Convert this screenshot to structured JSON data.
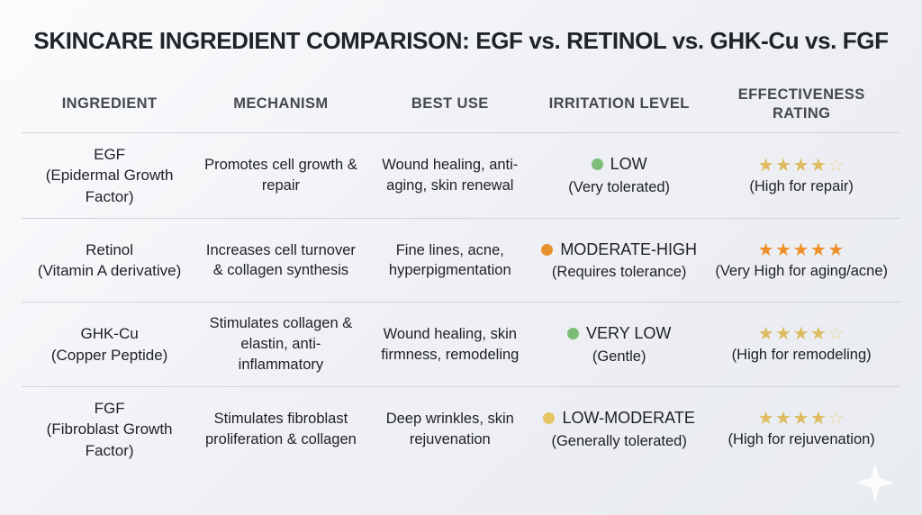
{
  "title": "SKINCARE INGREDIENT COMPARISON: EGF vs. RETINOL vs. GHK-Cu vs. FGF",
  "columns": {
    "ingredient": "INGREDIENT",
    "mechanism": "MECHANISM",
    "best_use": "BEST USE",
    "irritation": "IRRITATION LEVEL",
    "effectiveness": "EFFECTIVENESS RATING"
  },
  "colors": {
    "irritation_green": "#7cbd7a",
    "irritation_orange": "#e8922f",
    "irritation_yellow": "#e5c463",
    "star_gold": "#debb5e",
    "star_gold_empty": "#e9d89b",
    "star_orange": "#ee8f2a",
    "divider": "#d1d4d8"
  },
  "table": {
    "rows": [
      {
        "ingredient": "EGF",
        "ingredient_sub": "(Epidermal Growth Factor)",
        "mechanism": "Promotes cell growth & repair",
        "best_use": "Wound healing, anti-aging, skin renewal",
        "irritation": {
          "level": "LOW",
          "note": "(Very tolerated)",
          "dot_color": "#7cbd7a"
        },
        "rating": {
          "value": 4,
          "max": 5,
          "stars_filled": "★★★★",
          "stars_empty": "☆",
          "star_color": "#debb5e",
          "empty_star_color": "#e9d89b",
          "note": "(High for repair)"
        }
      },
      {
        "ingredient": "Retinol",
        "ingredient_sub": "(Vitamin A derivative)",
        "mechanism": "Increases cell turnover & collagen synthesis",
        "best_use": "Fine lines, acne, hyperpigmentation",
        "irritation": {
          "level": "MODERATE-HIGH",
          "note": "(Requires tolerance)",
          "dot_color": "#e8922f"
        },
        "rating": {
          "value": 5,
          "max": 5,
          "stars_filled": "★★★★★",
          "stars_empty": "",
          "star_color": "#ee8f2a",
          "empty_star_color": "#e9d89b",
          "note": "(Very High for aging/acne)"
        }
      },
      {
        "ingredient": "GHK-Cu",
        "ingredient_sub": "(Copper Peptide)",
        "mechanism": "Stimulates collagen & elastin, anti-inflammatory",
        "best_use": "Wound healing, skin firmness, remodeling",
        "irritation": {
          "level": "VERY LOW",
          "note": "(Gentle)",
          "dot_color": "#7cbd7a"
        },
        "rating": {
          "value": 4,
          "max": 5,
          "stars_filled": "★★★★",
          "stars_empty": "☆",
          "star_color": "#debb5e",
          "empty_star_color": "#e9d89b",
          "note": "(High for remodeling)"
        }
      },
      {
        "ingredient": "FGF",
        "ingredient_sub": "(Fibroblast Growth Factor)",
        "mechanism": "Stimulates fibroblast proliferation & collagen",
        "best_use": "Deep wrinkles, skin rejuvenation",
        "irritation": {
          "level": "LOW-MODERATE",
          "note": "(Generally tolerated)",
          "dot_color": "#e5c463"
        },
        "rating": {
          "value": 4,
          "max": 5,
          "stars_filled": "★★★★",
          "stars_empty": "☆",
          "star_color": "#debb5e",
          "empty_star_color": "#e9d89b",
          "note": "(High for rejuvenation)"
        }
      }
    ]
  },
  "chart_data": {
    "type": "table",
    "title": "SKINCARE INGREDIENT COMPARISON: EGF vs. RETINOL vs. GHK-Cu vs. FGF",
    "columns": [
      "INGREDIENT",
      "MECHANISM",
      "BEST USE",
      "IRRITATION LEVEL",
      "EFFECTIVENESS RATING"
    ],
    "rows": [
      [
        "EGF (Epidermal Growth Factor)",
        "Promotes cell growth & repair",
        "Wound healing, anti-aging, skin renewal",
        "LOW (Very tolerated)",
        "4/5 stars (High for repair)"
      ],
      [
        "Retinol (Vitamin A derivative)",
        "Increases cell turnover & collagen synthesis",
        "Fine lines, acne, hyperpigmentation",
        "MODERATE-HIGH (Requires tolerance)",
        "5/5 stars (Very High for aging/acne)"
      ],
      [
        "GHK-Cu (Copper Peptide)",
        "Stimulates collagen & elastin, anti-inflammatory",
        "Wound healing, skin firmness, remodeling",
        "VERY LOW (Gentle)",
        "4/5 stars (High for remodeling)"
      ],
      [
        "FGF (Fibroblast Growth Factor)",
        "Stimulates fibroblast proliferation & collagen",
        "Deep wrinkles, skin rejuvenation",
        "LOW-MODERATE (Generally tolerated)",
        "4/5 stars (High for rejuvenation)"
      ]
    ]
  }
}
